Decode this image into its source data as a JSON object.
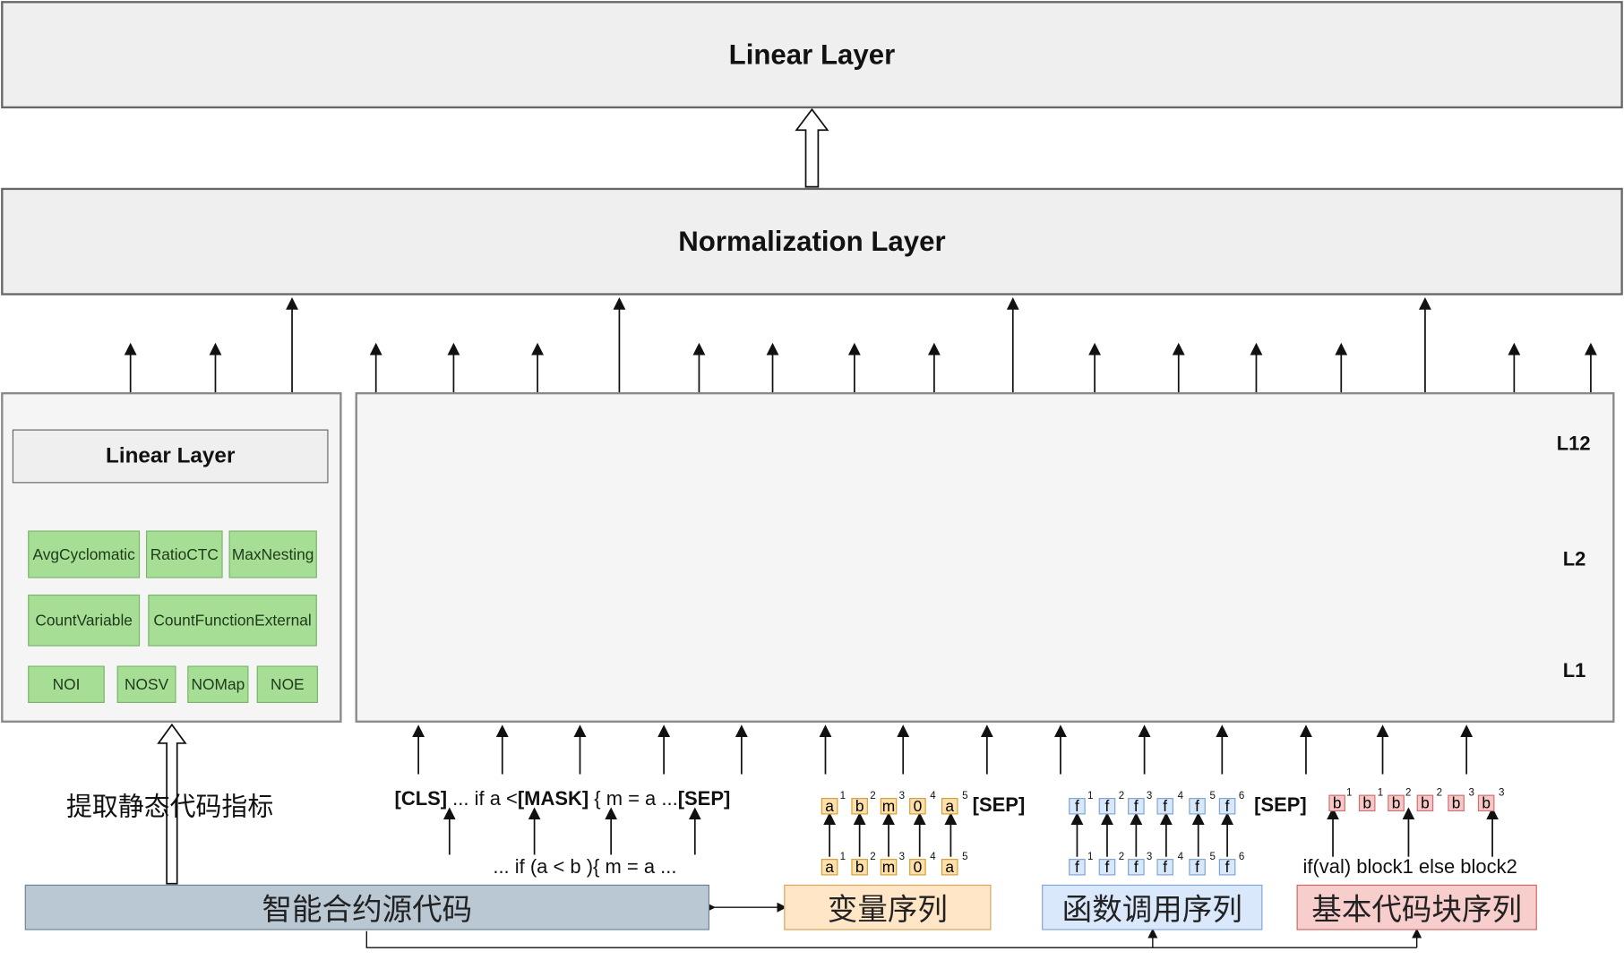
{
  "top_linear_layer": {
    "label": "Linear Layer"
  },
  "normalization_layer": {
    "label": "Normalization Layer"
  },
  "metric_panel": {
    "title": "Linear Layer",
    "metrics": [
      "AvgCyclomatic",
      "RatioCTC",
      "MaxNesting",
      "CountVariable",
      "CountFunctionExternal",
      "NOI",
      "NOSV",
      "NOMap",
      "NOE"
    ]
  },
  "encoder": {
    "layer_labels": [
      "L12",
      "L2",
      "L1"
    ],
    "node_groups": [
      "purple",
      "purple",
      "purple",
      "orange",
      "orange",
      "blue",
      "blue",
      "red",
      "red"
    ],
    "colors": {
      "purple": "#c4a8d2",
      "orange": "#ffe2b8",
      "blue": "#d5e6fa",
      "red": "#f6c9c9"
    }
  },
  "extract_label": "提取静态代码指标",
  "code_sequence": {
    "cls": "[CLS]",
    "part1": "... if  a <",
    "mask": "[MASK]",
    "part2": "{  m = a ...",
    "sep": "[SEP]",
    "raw": "... if (a < b ){ m = a ..."
  },
  "variable_sequence": {
    "tokens": [
      "a",
      "b",
      "m",
      "0",
      "a"
    ],
    "superscripts": [
      "1",
      "2",
      "3",
      "4",
      "5"
    ],
    "sep": "[SEP]"
  },
  "function_sequence": {
    "tokens": [
      "f",
      "f",
      "f",
      "f",
      "f",
      "f"
    ],
    "superscripts": [
      "1",
      "2",
      "3",
      "4",
      "5",
      "6"
    ],
    "sep": "[SEP]"
  },
  "block_sequence": {
    "tokens": [
      "b",
      "b",
      "b",
      "b",
      "b",
      "b"
    ],
    "superscripts": [
      "1",
      "1",
      "2",
      "2",
      "3",
      "3"
    ],
    "raw": "if(val) block1 else block2"
  },
  "source_boxes": {
    "contract": "智能合约源代码",
    "variables": "变量序列",
    "functions": "函数调用序列",
    "blocks": "基本代码块序列"
  }
}
